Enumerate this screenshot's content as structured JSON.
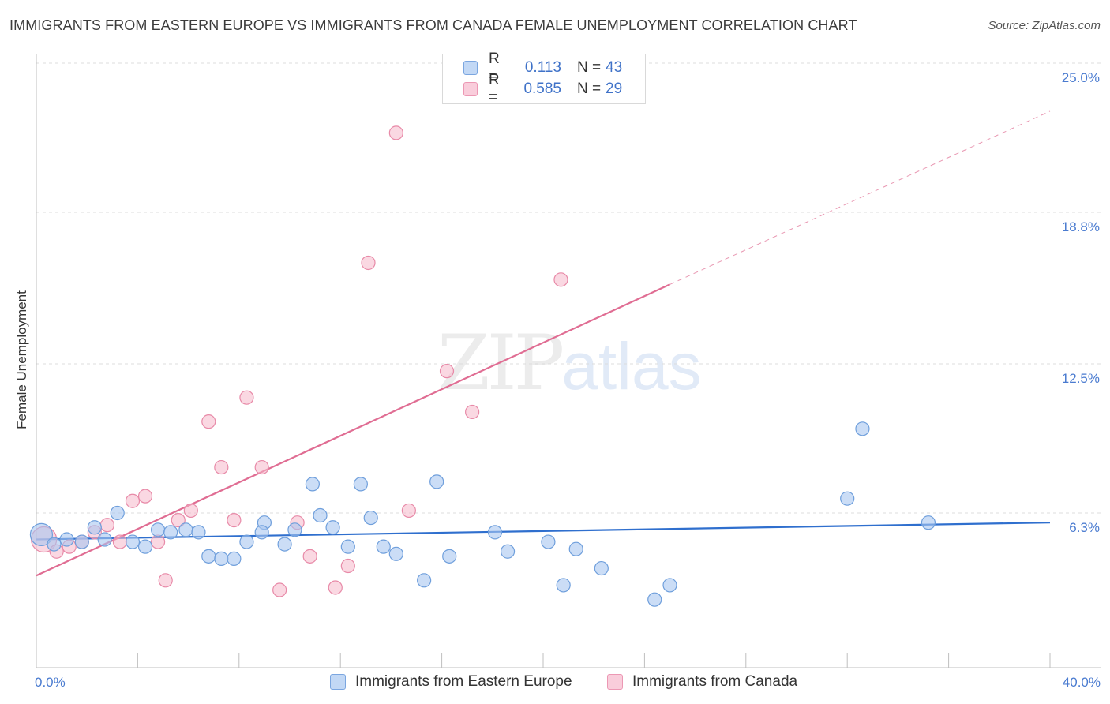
{
  "header": {
    "title": "IMMIGRANTS FROM EASTERN EUROPE VS IMMIGRANTS FROM CANADA FEMALE UNEMPLOYMENT CORRELATION CHART",
    "source": "Source: ZipAtlas.com"
  },
  "watermark": {
    "zip": "ZIP",
    "atlas": "atlas"
  },
  "legend": {
    "rows": [
      {
        "r_label": "R =",
        "r_value": "0.113",
        "n_label": "N =",
        "n_value": "43"
      },
      {
        "r_label": "R =",
        "r_value": "0.585",
        "n_label": "N =",
        "n_value": "29"
      }
    ]
  },
  "colors": {
    "blue_fill": "#a9c7f0",
    "blue_stroke": "#6f9fdc",
    "blue_line": "#2f6fce",
    "pink_fill": "#f5b8cb",
    "pink_stroke": "#e88aa8",
    "pink_line": "#e06d93",
    "grid": "#dcdcdc",
    "tick_text": "#4a7bd0"
  },
  "chart_data": {
    "type": "scatter",
    "title": "IMMIGRANTS FROM EASTERN EUROPE VS IMMIGRANTS FROM CANADA FEMALE UNEMPLOYMENT CORRELATION CHART",
    "xlabel": "",
    "ylabel": "Female Unemployment",
    "xlim": [
      0,
      40
    ],
    "ylim": [
      0,
      25
    ],
    "x_tick_labels": [
      "0.0%",
      "40.0%"
    ],
    "y_ticks": [
      6.3,
      12.5,
      18.8,
      25.0
    ],
    "y_tick_labels": [
      "6.3%",
      "12.5%",
      "18.8%",
      "25.0%"
    ],
    "grid": "horizontal dashed",
    "legend_position": "top-center and bottom",
    "series": [
      {
        "name": "Immigrants from Eastern Europe",
        "color": "#a9c7f0",
        "r": 0.113,
        "n": 43,
        "trend": {
          "x": [
            0,
            40
          ],
          "y": [
            5.2,
            5.9
          ]
        },
        "points": [
          [
            0.2,
            5.4
          ],
          [
            0.7,
            5.0
          ],
          [
            1.2,
            5.2
          ],
          [
            1.8,
            5.1
          ],
          [
            2.3,
            5.7
          ],
          [
            2.7,
            5.2
          ],
          [
            3.2,
            6.3
          ],
          [
            3.8,
            5.1
          ],
          [
            4.3,
            4.9
          ],
          [
            4.8,
            5.6
          ],
          [
            5.3,
            5.5
          ],
          [
            5.9,
            5.6
          ],
          [
            6.4,
            5.5
          ],
          [
            6.8,
            4.5
          ],
          [
            7.3,
            4.4
          ],
          [
            7.8,
            4.4
          ],
          [
            8.3,
            5.1
          ],
          [
            9.0,
            5.9
          ],
          [
            8.9,
            5.5
          ],
          [
            9.8,
            5.0
          ],
          [
            10.2,
            5.6
          ],
          [
            10.9,
            7.5
          ],
          [
            11.7,
            5.7
          ],
          [
            11.2,
            6.2
          ],
          [
            12.3,
            4.9
          ],
          [
            12.8,
            7.5
          ],
          [
            13.2,
            6.1
          ],
          [
            13.7,
            4.9
          ],
          [
            14.2,
            4.6
          ],
          [
            15.3,
            3.5
          ],
          [
            15.8,
            7.6
          ],
          [
            16.3,
            4.5
          ],
          [
            18.1,
            5.5
          ],
          [
            18.6,
            4.7
          ],
          [
            20.2,
            5.1
          ],
          [
            20.8,
            3.3
          ],
          [
            21.3,
            4.8
          ],
          [
            22.3,
            4.0
          ],
          [
            24.4,
            2.7
          ],
          [
            25.0,
            3.3
          ],
          [
            32.0,
            6.9
          ],
          [
            32.6,
            9.8
          ],
          [
            35.2,
            5.9
          ]
        ]
      },
      {
        "name": "Immigrants from Canada",
        "color": "#f5b8cb",
        "r": 0.585,
        "n": 29,
        "trend_solid": {
          "x": [
            0,
            25
          ],
          "y": [
            3.7,
            15.8
          ]
        },
        "trend_dashed": {
          "x": [
            25,
            40
          ],
          "y": [
            15.8,
            23.0
          ]
        },
        "points": [
          [
            0.3,
            5.2
          ],
          [
            0.8,
            4.7
          ],
          [
            1.3,
            4.9
          ],
          [
            1.8,
            5.1
          ],
          [
            2.3,
            5.5
          ],
          [
            2.8,
            5.8
          ],
          [
            3.3,
            5.1
          ],
          [
            3.8,
            6.8
          ],
          [
            4.3,
            7.0
          ],
          [
            4.8,
            5.1
          ],
          [
            5.1,
            3.5
          ],
          [
            5.6,
            6.0
          ],
          [
            6.1,
            6.4
          ],
          [
            6.8,
            10.1
          ],
          [
            7.3,
            8.2
          ],
          [
            7.8,
            6.0
          ],
          [
            8.3,
            11.1
          ],
          [
            8.9,
            8.2
          ],
          [
            9.6,
            3.1
          ],
          [
            10.3,
            5.9
          ],
          [
            10.8,
            4.5
          ],
          [
            11.8,
            3.2
          ],
          [
            12.3,
            4.1
          ],
          [
            13.1,
            16.7
          ],
          [
            14.2,
            22.1
          ],
          [
            14.7,
            6.4
          ],
          [
            16.2,
            12.2
          ],
          [
            17.2,
            10.5
          ],
          [
            20.7,
            16.0
          ]
        ]
      }
    ]
  },
  "bottom_legend": {
    "items": [
      {
        "label": "Immigrants from Eastern Europe"
      },
      {
        "label": "Immigrants from Canada"
      }
    ]
  }
}
